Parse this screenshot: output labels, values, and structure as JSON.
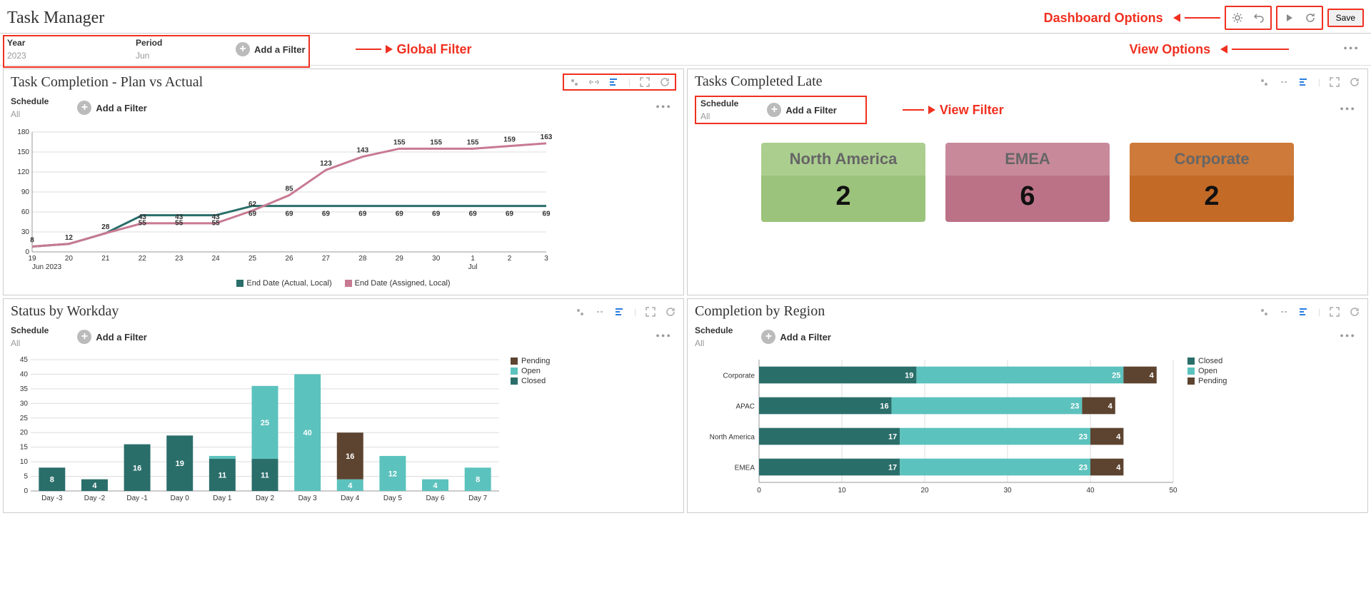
{
  "page_title": "Task Manager",
  "annotations": {
    "global_filter": "Global Filter",
    "dashboard_options": "Dashboard Options",
    "view_options": "View Options",
    "view_filter": "View Filter",
    "color": "#f03020"
  },
  "dashboard_toolbar": {
    "save_label": "Save"
  },
  "global_filters": {
    "year_label": "Year",
    "year_value": "2023",
    "period_label": "Period",
    "period_value": "Jun",
    "add_filter_label": "Add a Filter"
  },
  "panel_filter": {
    "schedule_label": "Schedule",
    "schedule_value": "All",
    "add_filter_label": "Add a Filter"
  },
  "panel1": {
    "title": "Task Completion - Plan vs Actual",
    "chart": {
      "type": "line",
      "x_labels": [
        "19",
        "20",
        "21",
        "22",
        "23",
        "24",
        "25",
        "26",
        "27",
        "28",
        "29",
        "30",
        "1",
        "2",
        "3"
      ],
      "x_month_start": "Jun 2023",
      "x_month_mid": "Jul",
      "ylim": [
        0,
        180
      ],
      "ytick_step": 30,
      "series": [
        {
          "name": "End Date (Actual, Local)",
          "color": "#2a6e6a",
          "values": [
            8,
            12,
            28,
            55,
            55,
            55,
            69,
            69,
            69,
            69,
            69,
            69,
            69,
            69,
            69
          ]
        },
        {
          "name": "End Date (Assigned, Local)",
          "color": "#c87a92",
          "values": [
            8,
            12,
            28,
            43,
            43,
            43,
            62,
            85,
            123,
            143,
            155,
            155,
            155,
            159,
            163
          ]
        }
      ],
      "labels_actual_offset": [
        0,
        0,
        0,
        0,
        0,
        0,
        -8,
        -8,
        0,
        0,
        0,
        0,
        0,
        0,
        0
      ],
      "background_color": "#ffffff",
      "grid_color": "#dddddd"
    }
  },
  "panel2": {
    "title": "Tasks Completed Late",
    "tiles": [
      {
        "label": "North America",
        "value": "2",
        "head_bg": "#abce8f",
        "body_bg": "#9bc37b"
      },
      {
        "label": "EMEA",
        "value": "6",
        "head_bg": "#c88a9a",
        "body_bg": "#bb7286"
      },
      {
        "label": "Corporate",
        "value": "2",
        "head_bg": "#cd7a3a",
        "body_bg": "#c36a26"
      }
    ]
  },
  "panel3": {
    "title": "Status by Workday",
    "chart": {
      "type": "stacked-bar-vertical",
      "categories": [
        "Day -3",
        "Day -2",
        "Day -1",
        "Day 0",
        "Day 1",
        "Day 2",
        "Day 3",
        "Day 4",
        "Day 5",
        "Day 6",
        "Day 7"
      ],
      "ylim": [
        0,
        45
      ],
      "ytick_step": 5,
      "series": [
        {
          "name": "Closed",
          "color": "#2a6e6a"
        },
        {
          "name": "Open",
          "color": "#5cc2bd"
        },
        {
          "name": "Pending",
          "color": "#5d4430"
        }
      ],
      "stacks": [
        {
          "closed": 8,
          "open": 0,
          "pending": 0,
          "labels": [
            "8"
          ]
        },
        {
          "closed": 4,
          "open": 0,
          "pending": 0,
          "labels": [
            "4"
          ]
        },
        {
          "closed": 16,
          "open": 0,
          "pending": 0,
          "labels": [
            "16"
          ]
        },
        {
          "closed": 19,
          "open": 0,
          "pending": 0,
          "labels": [
            "19"
          ]
        },
        {
          "closed": 11,
          "open": 1,
          "pending": 0,
          "labels": [
            "11"
          ]
        },
        {
          "closed": 11,
          "open": 25,
          "pending": 0,
          "labels": [
            "25",
            "11"
          ]
        },
        {
          "closed": 0,
          "open": 40,
          "pending": 0,
          "labels": [
            "40"
          ]
        },
        {
          "closed": 0,
          "open": 4,
          "pending": 16,
          "labels": [
            "16",
            "4"
          ]
        },
        {
          "closed": 0,
          "open": 12,
          "pending": 0,
          "labels": [
            "12"
          ]
        },
        {
          "closed": 0,
          "open": 4,
          "pending": 0,
          "labels": [
            "4"
          ]
        },
        {
          "closed": 0,
          "open": 8,
          "pending": 0,
          "labels": [
            "8"
          ]
        }
      ],
      "legend_order": [
        "Pending",
        "Open",
        "Closed"
      ]
    }
  },
  "panel4": {
    "title": "Completion by Region",
    "chart": {
      "type": "stacked-bar-horizontal",
      "categories": [
        "Corporate",
        "APAC",
        "North America",
        "EMEA"
      ],
      "xlim": [
        0,
        50
      ],
      "xtick_step": 10,
      "series": [
        {
          "name": "Closed",
          "color": "#2a6e6a"
        },
        {
          "name": "Open",
          "color": "#5cc2bd"
        },
        {
          "name": "Pending",
          "color": "#5d4430"
        }
      ],
      "rows": [
        {
          "closed": 19,
          "open": 25,
          "pending": 4
        },
        {
          "closed": 16,
          "open": 23,
          "pending": 4
        },
        {
          "closed": 17,
          "open": 23,
          "pending": 4
        },
        {
          "closed": 17,
          "open": 23,
          "pending": 4
        }
      ],
      "legend_order": [
        "Closed",
        "Open",
        "Pending"
      ]
    }
  }
}
